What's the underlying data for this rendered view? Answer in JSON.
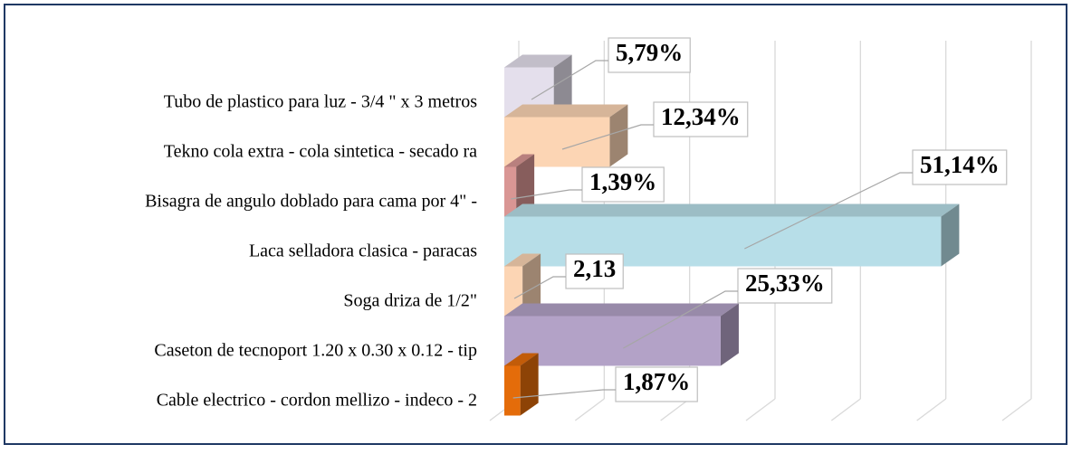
{
  "chart_data": {
    "type": "bar3d",
    "categories": [
      "Cable electrico - cordon mellizo - indeco - 2",
      "Caseton de tecnoport 1.20 x 0.30 x 0.12 - tip",
      "Soga driza de 1/2\"",
      "Laca selladora clasica - paracas",
      "Bisagra de angulo doblado para cama por 4\" -",
      "Tekno cola extra - cola sintetica - secado ra",
      "Tubo de plastico para luz - 3/4 \" x 3 metros"
    ],
    "values": [
      1.87,
      25.33,
      2.13,
      51.14,
      1.39,
      12.34,
      5.79
    ],
    "value_labels": [
      "1,87%",
      "25,33%",
      "2,13",
      "51,14%",
      "1,39%",
      "12,34%",
      "5,79%"
    ],
    "colors": [
      "#e46c0a",
      "#b3a2c7",
      "#fcd5b4",
      "#b7dee8",
      "#d99694",
      "#fcd5b4",
      "#e4dfec"
    ],
    "xlim": [
      0,
      60
    ],
    "xticks": [
      0,
      10,
      20,
      30,
      40,
      50,
      60
    ],
    "grid": true
  }
}
